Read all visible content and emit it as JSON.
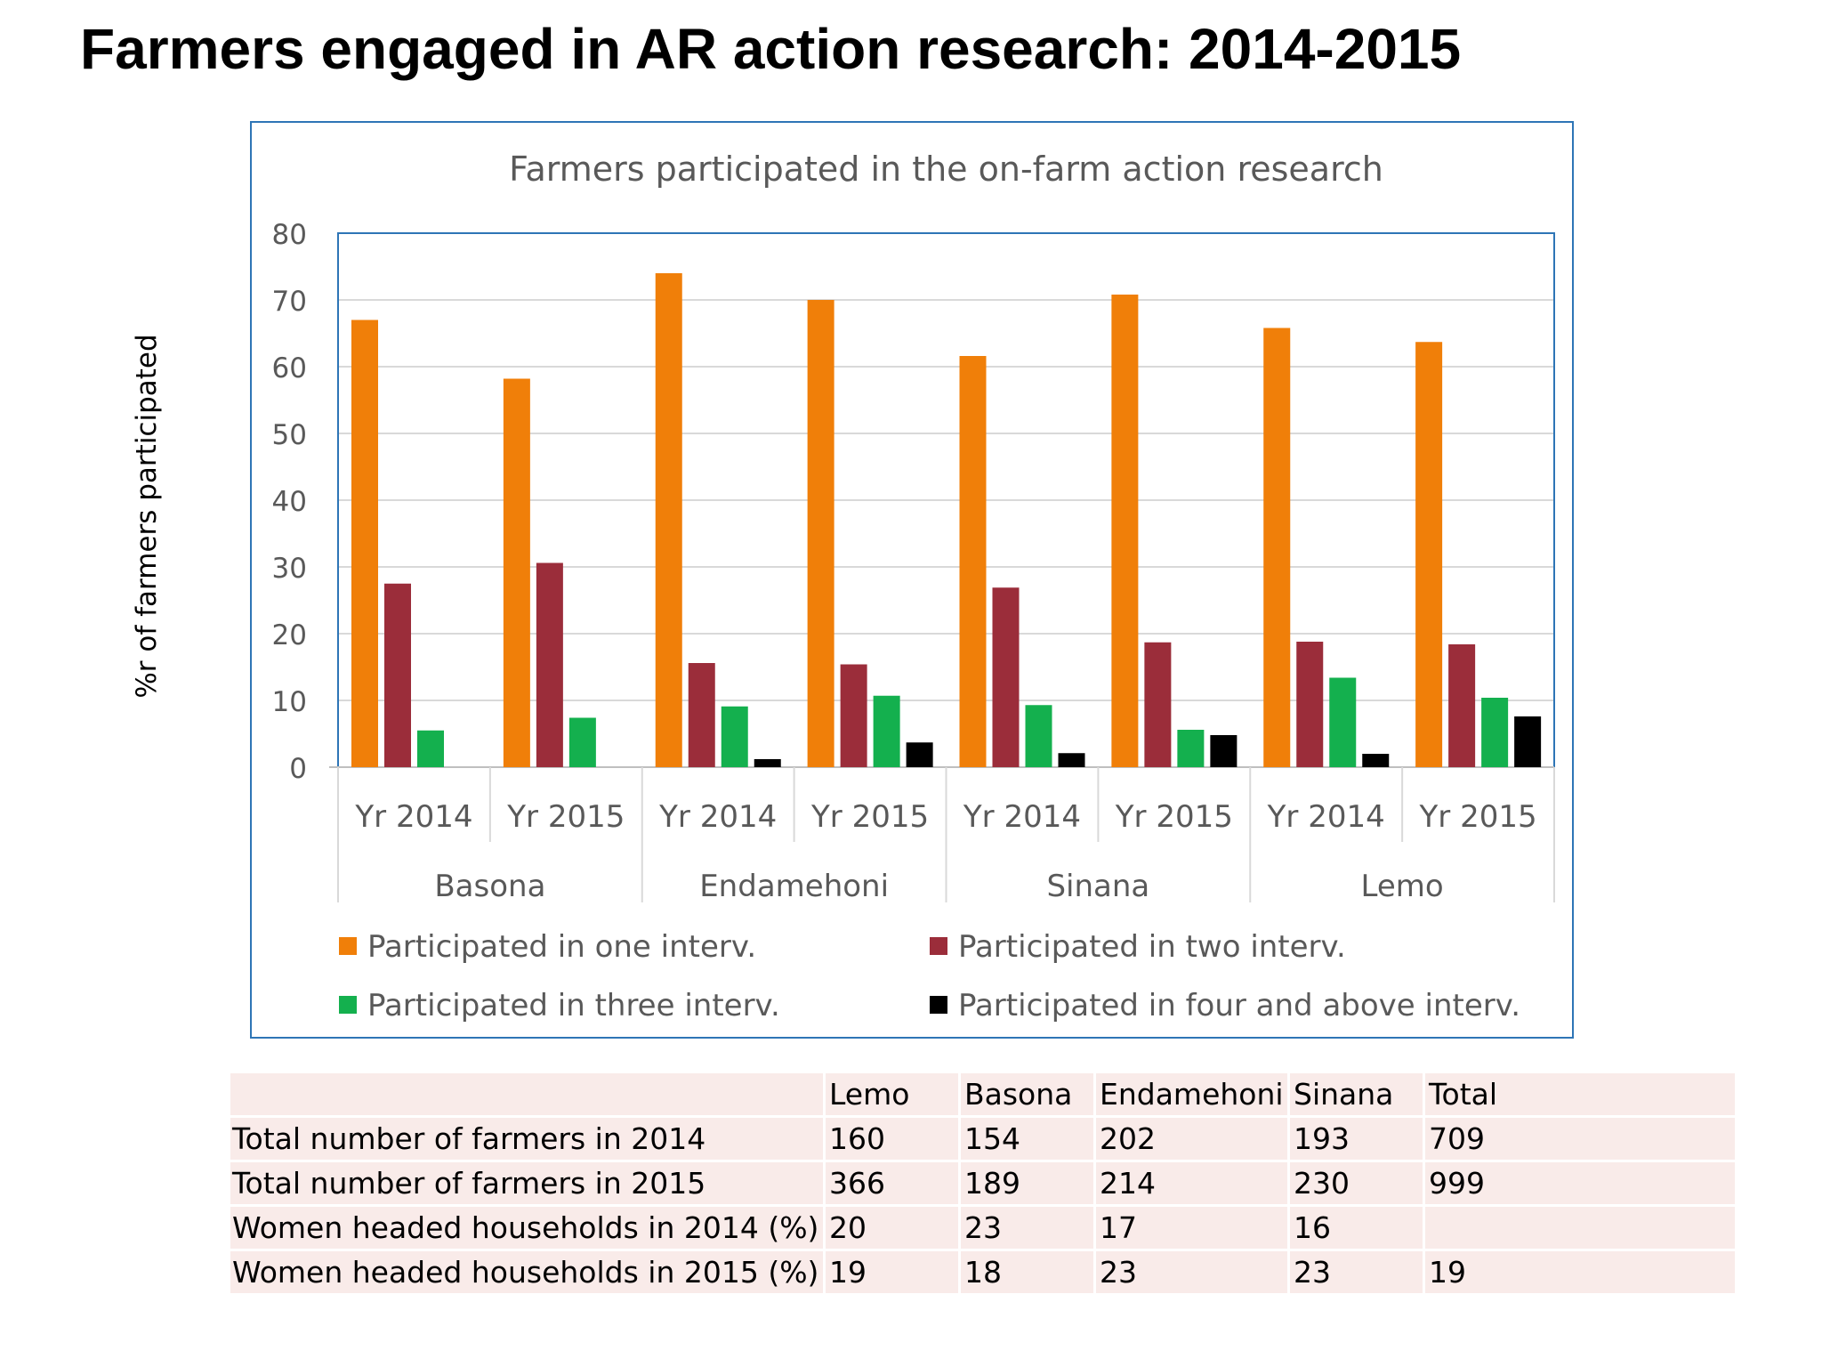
{
  "page_title": "Farmers engaged in AR action research: 2014-2015",
  "chart_data": {
    "type": "bar",
    "title": "Farmers participated in the on-farm action research",
    "ylabel": "%r of farmers participated",
    "xlabel": "",
    "ylim": [
      0,
      80
    ],
    "yticks": [
      "0",
      "10",
      "20",
      "30",
      "40",
      "50",
      "60",
      "70",
      "80"
    ],
    "groups": [
      "Basona",
      "Endamehoni",
      "Sinana",
      "Lemo"
    ],
    "categories": [
      "Yr 2014",
      "Yr 2015",
      "Yr 2014",
      "Yr 2015",
      "Yr 2014",
      "Yr 2015",
      "Yr 2014",
      "Yr 2015"
    ],
    "series": [
      {
        "name": "Participated in one interv.",
        "color": "#f07f09",
        "values": [
          67,
          58.2,
          74,
          70,
          61.6,
          70.8,
          65.8,
          63.7
        ]
      },
      {
        "name": "Participated in two  interv.",
        "color": "#9b2d3a",
        "values": [
          27.5,
          30.6,
          15.6,
          15.4,
          26.9,
          18.7,
          18.8,
          18.4
        ]
      },
      {
        "name": "Participated in three  interv.",
        "color": "#14b04e",
        "values": [
          5.5,
          7.4,
          9.1,
          10.7,
          9.3,
          5.6,
          13.4,
          10.4
        ]
      },
      {
        "name": "Participated in four  and above interv.",
        "color": "#000000",
        "values": [
          0,
          0,
          1.2,
          3.7,
          2.1,
          4.8,
          2.0,
          7.6
        ]
      }
    ],
    "legend_position": "bottom",
    "grid": true
  },
  "table": {
    "headers": [
      "",
      "Lemo",
      "Basona",
      "Endamehoni",
      "Sinana",
      "Total"
    ],
    "rows": [
      [
        "Total number of farmers in 2014",
        "160",
        "154",
        "202",
        "193",
        "709"
      ],
      [
        "Total number of farmers in 2015",
        "366",
        "189",
        "214",
        "230",
        "999"
      ],
      [
        "Women headed households in 2014 (%)",
        "20",
        "23",
        "17",
        "16",
        ""
      ],
      [
        "Women headed households in 2015 (%)",
        "19",
        "18",
        "23",
        "23",
        "19"
      ]
    ]
  }
}
